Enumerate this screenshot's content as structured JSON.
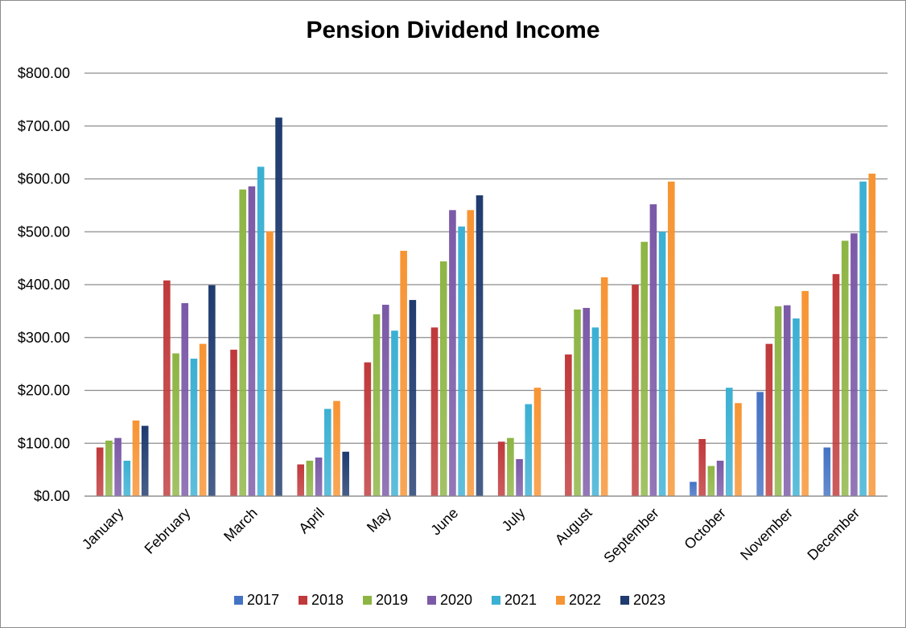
{
  "chart_data": {
    "type": "bar",
    "title": "Pension Dividend Income",
    "xlabel": "",
    "ylabel": "",
    "ylim": [
      0,
      800
    ],
    "y_ticks": [
      "$0.00",
      "$100.00",
      "$200.00",
      "$300.00",
      "$400.00",
      "$500.00",
      "$600.00",
      "$700.00",
      "$800.00"
    ],
    "grid": true,
    "legend_position": "bottom",
    "categories": [
      "January",
      "February",
      "March",
      "April",
      "May",
      "June",
      "July",
      "August",
      "September",
      "October",
      "November",
      "December"
    ],
    "series": [
      {
        "name": "2017",
        "color": "#4472c4",
        "values": [
          null,
          null,
          null,
          null,
          null,
          null,
          null,
          null,
          null,
          27,
          197,
          92
        ]
      },
      {
        "name": "2018",
        "color": "#c0393b",
        "values": [
          92,
          408,
          277,
          60,
          253,
          319,
          103,
          268,
          400,
          108,
          288,
          420
        ]
      },
      {
        "name": "2019",
        "color": "#8db544",
        "values": [
          105,
          270,
          580,
          67,
          344,
          444,
          110,
          353,
          481,
          57,
          359,
          483
        ]
      },
      {
        "name": "2020",
        "color": "#7b59a7",
        "values": [
          110,
          365,
          586,
          73,
          362,
          541,
          70,
          356,
          552,
          67,
          361,
          497
        ]
      },
      {
        "name": "2021",
        "color": "#3bb0d3",
        "values": [
          67,
          260,
          623,
          165,
          313,
          510,
          174,
          319,
          500,
          205,
          336,
          595
        ]
      },
      {
        "name": "2022",
        "color": "#f79433",
        "values": [
          143,
          288,
          501,
          180,
          464,
          541,
          205,
          414,
          595,
          176,
          388,
          610
        ]
      },
      {
        "name": "2023",
        "color": "#1f3b6f",
        "values": [
          133,
          399,
          716,
          84,
          371,
          569,
          null,
          null,
          null,
          null,
          null,
          null
        ]
      }
    ]
  }
}
